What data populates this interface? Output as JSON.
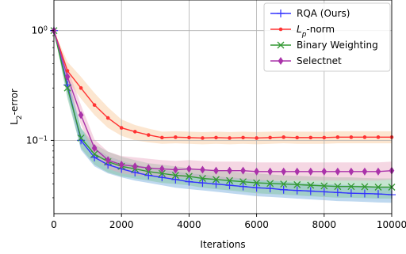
{
  "chart_data": {
    "type": "line",
    "title": "",
    "xlabel": "Iterations",
    "ylabel": "L2-error",
    "ylabel_main": "L",
    "ylabel_sub": "2",
    "ylabel_rest": "-error",
    "xscale": "linear",
    "yscale": "log",
    "xlim": [
      0,
      10000
    ],
    "ylim": [
      0.0215,
      1.9
    ],
    "grid": true,
    "legend_position": "top-right",
    "xticks": [
      {
        "value": 0,
        "label": "0"
      },
      {
        "value": 2000,
        "label": "2000"
      },
      {
        "value": 4000,
        "label": "4000"
      },
      {
        "value": 6000,
        "label": "6000"
      },
      {
        "value": 8000,
        "label": "8000"
      },
      {
        "value": 10000,
        "label": "10000"
      }
    ],
    "yticks": [
      {
        "value": 1,
        "base": "10",
        "exp": "0"
      },
      {
        "value": 0.1,
        "base": "10",
        "exp": "−1"
      }
    ],
    "series": [
      {
        "name": "RQA (Ours)",
        "color": "#3333ff",
        "band_color": "#6fa8dc",
        "marker": "plus",
        "x": [
          0,
          400,
          800,
          1200,
          1600,
          2000,
          2400,
          2800,
          3200,
          3600,
          4000,
          4400,
          4800,
          5200,
          5600,
          6000,
          6400,
          6800,
          7200,
          7600,
          8000,
          8400,
          8800,
          9200,
          9600,
          10000
        ],
        "y": [
          1.0,
          0.32,
          0.1,
          0.07,
          0.06,
          0.055,
          0.051,
          0.048,
          0.046,
          0.044,
          0.042,
          0.041,
          0.04,
          0.039,
          0.038,
          0.037,
          0.0365,
          0.0355,
          0.035,
          0.0345,
          0.034,
          0.0335,
          0.033,
          0.0328,
          0.0325,
          0.032
        ],
        "lower": [
          1.0,
          0.26,
          0.082,
          0.058,
          0.05,
          0.046,
          0.043,
          0.041,
          0.039,
          0.037,
          0.036,
          0.035,
          0.034,
          0.033,
          0.032,
          0.031,
          0.0305,
          0.03,
          0.0295,
          0.029,
          0.0285,
          0.028,
          0.0278,
          0.0275,
          0.0272,
          0.027
        ],
        "upper": [
          1.0,
          0.4,
          0.13,
          0.085,
          0.072,
          0.065,
          0.06,
          0.057,
          0.054,
          0.052,
          0.05,
          0.049,
          0.047,
          0.046,
          0.045,
          0.044,
          0.043,
          0.042,
          0.041,
          0.0405,
          0.04,
          0.0395,
          0.039,
          0.0385,
          0.038,
          0.0375
        ]
      },
      {
        "name": "Lp-norm",
        "name_main": "L",
        "name_sub": "p",
        "name_rest": "-norm",
        "color": "#ff3333",
        "band_color": "#f9c896",
        "marker": "dot",
        "x": [
          0,
          400,
          800,
          1200,
          1600,
          2000,
          2400,
          2800,
          3200,
          3600,
          4000,
          4400,
          4800,
          5200,
          5600,
          6000,
          6400,
          6800,
          7200,
          7600,
          8000,
          8400,
          8800,
          9200,
          9600,
          10000
        ],
        "y": [
          1.0,
          0.43,
          0.3,
          0.21,
          0.16,
          0.13,
          0.12,
          0.112,
          0.106,
          0.107,
          0.106,
          0.105,
          0.106,
          0.105,
          0.106,
          0.105,
          0.106,
          0.107,
          0.106,
          0.106,
          0.106,
          0.107,
          0.107,
          0.107,
          0.107,
          0.107
        ],
        "lower": [
          1.0,
          0.35,
          0.24,
          0.17,
          0.13,
          0.11,
          0.1,
          0.096,
          0.093,
          0.094,
          0.093,
          0.092,
          0.093,
          0.092,
          0.093,
          0.092,
          0.093,
          0.094,
          0.093,
          0.093,
          0.093,
          0.094,
          0.094,
          0.094,
          0.094,
          0.094
        ],
        "upper": [
          1.0,
          0.52,
          0.38,
          0.27,
          0.2,
          0.155,
          0.138,
          0.128,
          0.12,
          0.121,
          0.12,
          0.119,
          0.12,
          0.119,
          0.12,
          0.119,
          0.12,
          0.121,
          0.12,
          0.12,
          0.12,
          0.121,
          0.121,
          0.121,
          0.121,
          0.121
        ]
      },
      {
        "name": "Binary Weighting",
        "color": "#339933",
        "band_color": "#7fc49a",
        "marker": "x",
        "x": [
          0,
          400,
          800,
          1200,
          1600,
          2000,
          2400,
          2800,
          3200,
          3600,
          4000,
          4400,
          4800,
          5200,
          5600,
          6000,
          6400,
          6800,
          7200,
          7600,
          8000,
          8400,
          8800,
          9200,
          9600,
          10000
        ],
        "y": [
          1.0,
          0.3,
          0.105,
          0.075,
          0.064,
          0.058,
          0.055,
          0.052,
          0.05,
          0.048,
          0.047,
          0.045,
          0.044,
          0.043,
          0.042,
          0.041,
          0.0405,
          0.04,
          0.0395,
          0.039,
          0.0385,
          0.038,
          0.038,
          0.0378,
          0.0375,
          0.0375
        ],
        "lower": [
          1.0,
          0.24,
          0.085,
          0.06,
          0.051,
          0.047,
          0.045,
          0.043,
          0.041,
          0.04,
          0.039,
          0.037,
          0.036,
          0.035,
          0.034,
          0.033,
          0.0325,
          0.032,
          0.0315,
          0.031,
          0.0305,
          0.03,
          0.03,
          0.0298,
          0.0295,
          0.0295
        ],
        "upper": [
          1.0,
          0.37,
          0.13,
          0.092,
          0.079,
          0.071,
          0.066,
          0.062,
          0.06,
          0.058,
          0.056,
          0.054,
          0.053,
          0.052,
          0.051,
          0.05,
          0.049,
          0.048,
          0.0475,
          0.047,
          0.0465,
          0.046,
          0.046,
          0.0455,
          0.045,
          0.045
        ]
      },
      {
        "name": "Selectnet",
        "color": "#aa33aa",
        "band_color": "#e8a6c2",
        "marker": "diamond",
        "x": [
          0,
          400,
          800,
          1200,
          1600,
          2000,
          2400,
          2800,
          3200,
          3600,
          4000,
          4400,
          4800,
          5200,
          5600,
          6000,
          6400,
          6800,
          7200,
          7600,
          8000,
          8400,
          8800,
          9200,
          9600,
          10000
        ],
        "y": [
          1.0,
          0.38,
          0.17,
          0.085,
          0.066,
          0.06,
          0.058,
          0.056,
          0.055,
          0.054,
          0.055,
          0.054,
          0.053,
          0.053,
          0.053,
          0.052,
          0.052,
          0.052,
          0.052,
          0.052,
          0.052,
          0.052,
          0.052,
          0.052,
          0.052,
          0.053
        ],
        "lower": [
          1.0,
          0.31,
          0.14,
          0.07,
          0.055,
          0.05,
          0.048,
          0.047,
          0.046,
          0.045,
          0.046,
          0.045,
          0.044,
          0.044,
          0.044,
          0.043,
          0.043,
          0.043,
          0.043,
          0.043,
          0.043,
          0.043,
          0.043,
          0.043,
          0.043,
          0.044
        ],
        "upper": [
          1.0,
          0.46,
          0.21,
          0.102,
          0.079,
          0.072,
          0.07,
          0.068,
          0.066,
          0.065,
          0.066,
          0.065,
          0.064,
          0.064,
          0.064,
          0.063,
          0.063,
          0.063,
          0.063,
          0.063,
          0.063,
          0.063,
          0.063,
          0.063,
          0.063,
          0.064
        ]
      }
    ]
  }
}
